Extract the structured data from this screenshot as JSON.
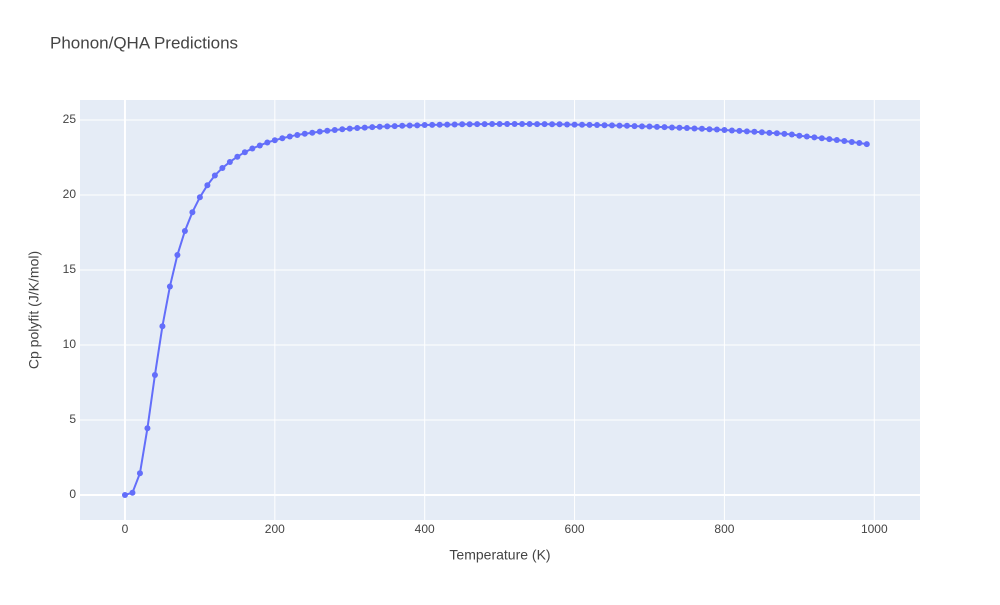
{
  "chart_data": {
    "type": "line",
    "title": "Phonon/QHA Predictions",
    "x_label": "Temperature (K)",
    "y_label": "Cp polyfit (J/K/mol)",
    "x": [
      0,
      10,
      20,
      30,
      40,
      50,
      60,
      70,
      80,
      90,
      100,
      110,
      120,
      130,
      140,
      150,
      160,
      170,
      180,
      190,
      200,
      210,
      220,
      230,
      240,
      250,
      260,
      270,
      280,
      290,
      300,
      310,
      320,
      330,
      340,
      350,
      360,
      370,
      380,
      390,
      400,
      410,
      420,
      430,
      440,
      450,
      460,
      470,
      480,
      490,
      500,
      510,
      520,
      530,
      540,
      550,
      560,
      570,
      580,
      590,
      600,
      610,
      620,
      630,
      640,
      650,
      660,
      670,
      680,
      690,
      700,
      710,
      720,
      730,
      740,
      750,
      760,
      770,
      780,
      790,
      800,
      810,
      820,
      830,
      840,
      850,
      860,
      870,
      880,
      890,
      900,
      910,
      920,
      930,
      940,
      950,
      960,
      970,
      980,
      990
    ],
    "series": [
      {
        "color": "#636efa",
        "values": [
          0,
          0.15,
          1.45,
          4.45,
          8.0,
          11.25,
          13.9,
          16.0,
          17.6,
          18.85,
          19.85,
          20.65,
          21.3,
          21.8,
          22.2,
          22.55,
          22.85,
          23.1,
          23.3,
          23.5,
          23.65,
          23.78,
          23.9,
          24.0,
          24.08,
          24.15,
          24.22,
          24.28,
          24.33,
          24.38,
          24.42,
          24.46,
          24.49,
          24.52,
          24.55,
          24.57,
          24.59,
          24.61,
          24.63,
          24.64,
          24.66,
          24.67,
          24.68,
          24.69,
          24.7,
          24.71,
          24.71,
          24.72,
          24.72,
          24.73,
          24.73,
          24.73,
          24.73,
          24.73,
          24.73,
          24.72,
          24.72,
          24.71,
          24.71,
          24.7,
          24.69,
          24.68,
          24.67,
          24.66,
          24.65,
          24.64,
          24.62,
          24.61,
          24.59,
          24.57,
          24.56,
          24.54,
          24.52,
          24.5,
          24.48,
          24.46,
          24.43,
          24.41,
          24.38,
          24.36,
          24.33,
          24.3,
          24.27,
          24.24,
          24.21,
          24.18,
          24.14,
          24.11,
          24.07,
          24.03,
          23.95,
          23.9,
          23.84,
          23.78,
          23.72,
          23.66,
          23.6,
          23.53,
          23.46,
          23.39
        ]
      }
    ],
    "xlim": [
      -60,
      1061
    ],
    "ylim": [
      -1.67,
      26.33
    ],
    "xticks": [
      0,
      200,
      400,
      600,
      800,
      1000
    ],
    "yticks": [
      0,
      5,
      10,
      15,
      20,
      25
    ],
    "grid": true
  }
}
